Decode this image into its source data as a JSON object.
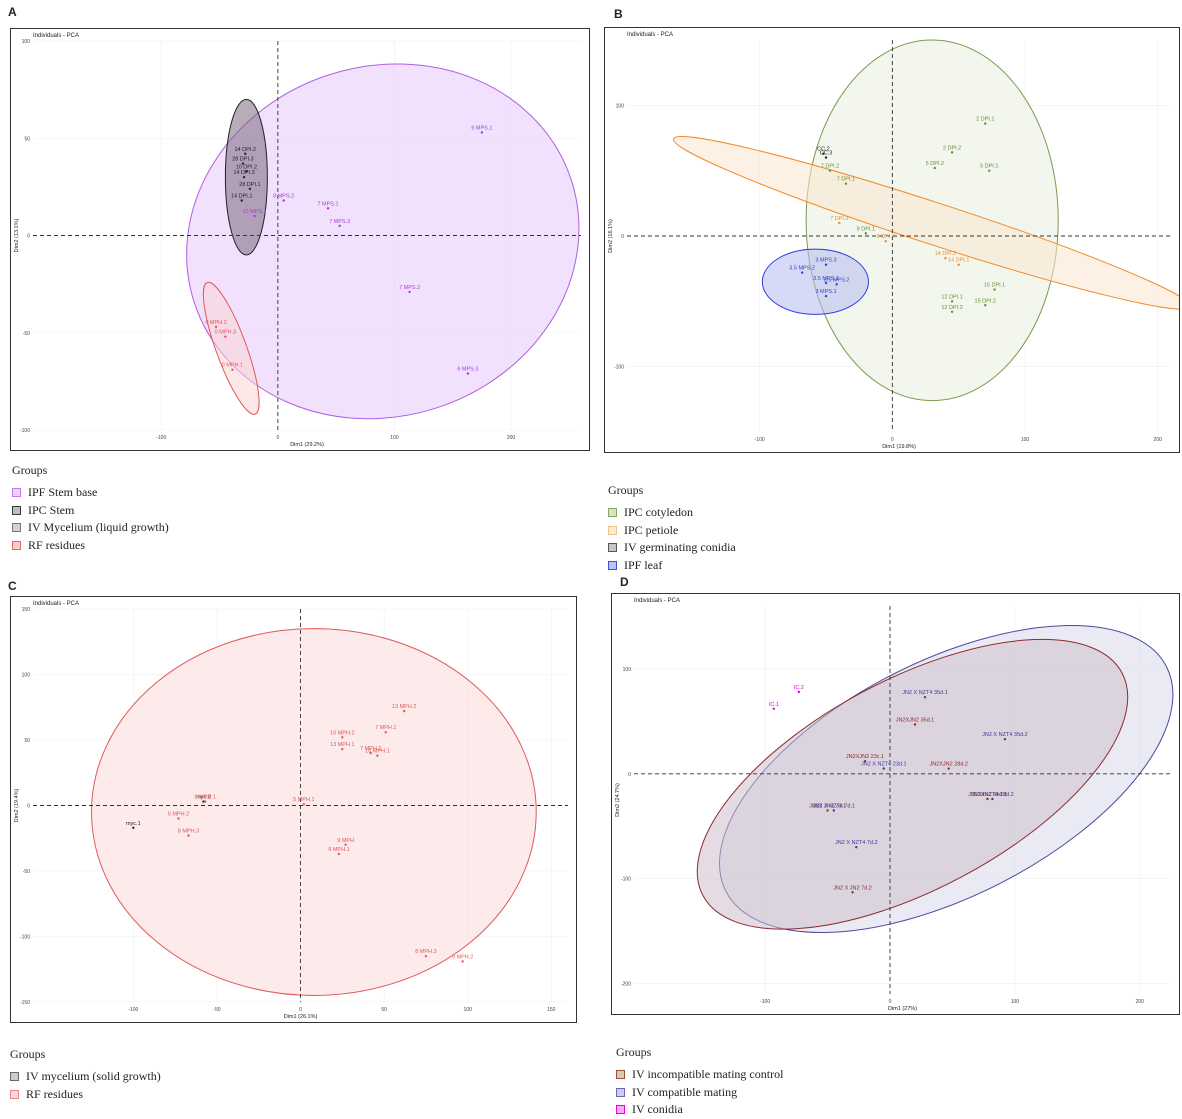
{
  "panels": [
    {
      "letter": "A",
      "plot_title": "Individuals - PCA",
      "legend_title": "Groups",
      "legend": [
        {
          "label": "IPF Stem base",
          "color": "#c27bf0"
        },
        {
          "label": "IPC Stem",
          "color": "#3a3a3a"
        },
        {
          "label": "IV Mycelium (liquid growth)",
          "color": "#777777"
        },
        {
          "label": "RF residues",
          "color": "#e26a6a"
        }
      ]
    },
    {
      "letter": "B",
      "plot_title": "Individuals - PCA",
      "legend_title": "Groups",
      "legend": [
        {
          "label": "IPC cotyledon",
          "color": "#8aa862"
        },
        {
          "label": "IPC petiole",
          "color": "#f3c28a"
        },
        {
          "label": "IV germinating conidia",
          "color": "#555555"
        },
        {
          "label": "IPF leaf",
          "color": "#3b4fd8"
        }
      ]
    },
    {
      "letter": "C",
      "plot_title": "Individuals - PCA",
      "legend_title": "Groups",
      "legend": [
        {
          "label": "IV mycelium (solid growth)",
          "color": "#666666"
        },
        {
          "label": "RF residues",
          "color": "#e88a8a"
        }
      ]
    },
    {
      "letter": "D",
      "plot_title": "Individuals - PCA",
      "legend_title": "Groups",
      "legend": [
        {
          "label": "IV incompatible mating control",
          "color": "#a0522d"
        },
        {
          "label": "IV compatible mating",
          "color": "#6a6ab0"
        },
        {
          "label": "IV conidia",
          "color": "#e600e6"
        }
      ]
    }
  ],
  "chart_data": [
    {
      "type": "scatter",
      "title": "Individuals - PCA",
      "xlabel": "Dim1 (29.2%)",
      "ylabel": "Dim2 (13.1%)",
      "xlim": [
        -210,
        260
      ],
      "ylim": [
        -100,
        100
      ],
      "xticks": [
        -100,
        0,
        100,
        200
      ],
      "yticks": [
        -100,
        -50,
        0,
        50,
        100
      ],
      "ellipses": [
        {
          "group": "IPF Stem base",
          "cx": 90,
          "cy": -3,
          "rx": 170,
          "ry": 90,
          "angle_deg": -18,
          "fill": "#e7c8fb",
          "stroke": "#b05ee0"
        },
        {
          "group": "IPC Stem",
          "cx": -27,
          "cy": 30,
          "rx": 18,
          "ry": 40,
          "angle_deg": 0,
          "fill": "#7c6a80",
          "stroke": "#222222"
        },
        {
          "group": "RF residues",
          "cx": -40,
          "cy": -58,
          "rx": 13,
          "ry": 36,
          "angle_deg": -20,
          "fill": "#fbd6d6",
          "stroke": "#e05858"
        }
      ],
      "groups": [
        {
          "name": "IPF Stem base",
          "color": "#a93bde",
          "points": [
            {
              "label": "6 MPS.1",
              "x": 175,
              "y": 53
            },
            {
              "label": "8 MPS.2",
              "x": 5,
              "y": 18
            },
            {
              "label": "7 MPS.1",
              "x": 43,
              "y": 14
            },
            {
              "label": "7 MPS.3",
              "x": 53,
              "y": 5
            },
            {
              "label": "10 MPS.1",
              "x": -20,
              "y": 10
            },
            {
              "label": "7 MPS.2",
              "x": 113,
              "y": -29
            },
            {
              "label": "6 MPS.3",
              "x": 163,
              "y": -71
            }
          ]
        },
        {
          "name": "IPC Stem",
          "color": "#222222",
          "points": [
            {
              "label": "14 DPI.2",
              "x": -28,
              "y": 42
            },
            {
              "label": "28 DPI.3",
              "x": -30,
              "y": 37
            },
            {
              "label": "10 DPI.2",
              "x": -27,
              "y": 33
            },
            {
              "label": "14 DPI.3",
              "x": -29,
              "y": 30
            },
            {
              "label": "28 DPI.1",
              "x": -24,
              "y": 24
            },
            {
              "label": "14 DPI.1",
              "x": -31,
              "y": 18
            }
          ]
        },
        {
          "name": "RF residues",
          "color": "#e05858",
          "points": [
            {
              "label": "0 MPH.2",
              "x": -53,
              "y": -47
            },
            {
              "label": "0 MPH.3",
              "x": -45,
              "y": -52
            },
            {
              "label": "0 MPH.1",
              "x": -39,
              "y": -69
            }
          ]
        }
      ]
    },
    {
      "type": "scatter",
      "title": "Individuals - PCA",
      "xlabel": "Dim1 (19.8%)",
      "ylabel": "Dim2 (16.1%)",
      "xlim": [
        -200,
        210
      ],
      "ylim": [
        -150,
        150
      ],
      "xticks": [
        -100,
        0,
        100,
        200
      ],
      "yticks": [
        -100,
        0,
        100
      ],
      "ellipses": [
        {
          "group": "IPC cotyledon",
          "cx": 30,
          "cy": 12,
          "rx": 95,
          "ry": 138,
          "angle_deg": 0,
          "fill": "#e7eedd",
          "stroke": "#7c9c51"
        },
        {
          "group": "IPC petiole",
          "cx": 30,
          "cy": 10,
          "rx": 205,
          "ry": 16,
          "angle_deg": 18,
          "fill": "#fbe6cf",
          "stroke": "#f08a2a"
        },
        {
          "group": "IPF leaf",
          "cx": -58,
          "cy": -35,
          "rx": 40,
          "ry": 25,
          "angle_deg": 0,
          "fill": "#b4bcf0",
          "stroke": "#2f3fd8"
        }
      ],
      "groups": [
        {
          "name": "IPC cotyledon",
          "color": "#6b8c39",
          "points": [
            {
              "label": "2 DPI.1",
              "x": 70,
              "y": 86
            },
            {
              "label": "2 DPI.2",
              "x": 45,
              "y": 64
            },
            {
              "label": "5 DPI.2",
              "x": 32,
              "y": 52
            },
            {
              "label": "5 DPI.1",
              "x": 73,
              "y": 50
            },
            {
              "label": "7 DPI.2",
              "x": -47,
              "y": 50
            },
            {
              "label": "7 DPI.1",
              "x": -35,
              "y": 40
            },
            {
              "label": "9 DPI.1",
              "x": -20,
              "y": 2
            },
            {
              "label": "15 DPI.1",
              "x": 77,
              "y": -41
            },
            {
              "label": "15 DPI.2",
              "x": 70,
              "y": -53
            },
            {
              "label": "12 DPI.1",
              "x": 45,
              "y": -50
            },
            {
              "label": "12 DPI.2",
              "x": 45,
              "y": -58
            }
          ]
        },
        {
          "name": "IPC petiole",
          "color": "#f08a2a",
          "points": [
            {
              "label": "7 DPI.3",
              "x": -40,
              "y": 10
            },
            {
              "label": "9 DPI.2",
              "x": -5,
              "y": -4
            },
            {
              "label": "14 DPI.2",
              "x": 40,
              "y": -17
            },
            {
              "label": "14 DPI.1",
              "x": 50,
              "y": -22
            }
          ]
        },
        {
          "name": "IV germinating conidia",
          "color": "#222222",
          "points": [
            {
              "label": "CC.2",
              "x": -52,
              "y": 63
            },
            {
              "label": "CC.3",
              "x": -50,
              "y": 60
            }
          ]
        },
        {
          "name": "IPF leaf",
          "color": "#2f3fd8",
          "points": [
            {
              "label": "3 MPS.3",
              "x": -50,
              "y": -22
            },
            {
              "label": "3.5 MPS.2",
              "x": -68,
              "y": -28
            },
            {
              "label": "3.5 MPS.1",
              "x": -50,
              "y": -36
            },
            {
              "label": "3.5 MPS.2",
              "x": -42,
              "y": -37
            },
            {
              "label": "3 MPS.1",
              "x": -50,
              "y": -46
            }
          ]
        }
      ]
    },
    {
      "type": "scatter",
      "title": "Individuals - PCA",
      "xlabel": "Dim1 (26.1%)",
      "ylabel": "Dim2 (19.4%)",
      "xlim": [
        -160,
        160
      ],
      "ylim": [
        -150,
        150
      ],
      "xticks": [
        -100,
        -50,
        0,
        50,
        100,
        150
      ],
      "yticks": [
        -150,
        -100,
        -50,
        0,
        50,
        100,
        150
      ],
      "ellipses": [
        {
          "group": "RF residues",
          "cx": 8,
          "cy": -5,
          "rx": 133,
          "ry": 140,
          "angle_deg": 0,
          "fill": "#fbdada",
          "stroke": "#e05858"
        }
      ],
      "groups": [
        {
          "name": "IV mycelium (solid growth)",
          "color": "#222222",
          "points": [
            {
              "label": "myc.1",
              "x": -100,
              "y": -17
            },
            {
              "label": "myc.2",
              "x": -58,
              "y": 3
            }
          ]
        },
        {
          "name": "RF residues",
          "color": "#e05858",
          "points": [
            {
              "label": "13 MPH.2",
              "x": 62,
              "y": 72
            },
            {
              "label": "7 MPH.1",
              "x": 51,
              "y": 56
            },
            {
              "label": "10 MPH.2",
              "x": 25,
              "y": 52
            },
            {
              "label": "13 MPH.1",
              "x": 25,
              "y": 43
            },
            {
              "label": "7 MPH.2",
              "x": 42,
              "y": 40
            },
            {
              "label": "10 MPH.1",
              "x": 46,
              "y": 38
            },
            {
              "label": "5 MPH.1",
              "x": 2,
              "y": 1
            },
            {
              "label": "0 MPH.1",
              "x": -57,
              "y": 3
            },
            {
              "label": "5 MPH.2",
              "x": -73,
              "y": -10
            },
            {
              "label": "8 MPH.3",
              "x": -67,
              "y": -23
            },
            {
              "label": "9 MPH",
              "x": 27,
              "y": -30
            },
            {
              "label": "9 MPH.1",
              "x": 23,
              "y": -37
            },
            {
              "label": "8 MPH.3",
              "x": 75,
              "y": -115
            },
            {
              "label": "9 MPH.2",
              "x": 97,
              "y": -119
            }
          ]
        }
      ]
    },
    {
      "type": "scatter",
      "title": "Individuals - PCA",
      "xlabel": "Dim1 (27%)",
      "ylabel": "Dim2 (24.7%)",
      "xlim": [
        -205,
        225
      ],
      "ylim": [
        -210,
        160
      ],
      "xticks": [
        -100,
        0,
        100,
        200
      ],
      "yticks": [
        -200,
        -100,
        0,
        100
      ],
      "ellipses": [
        {
          "group": "IV compatible mating",
          "cx": 45,
          "cy": -5,
          "rx": 198,
          "ry": 112,
          "angle_deg": -27,
          "fill": "#d9d8eb",
          "stroke": "#4a4a9c"
        },
        {
          "group": "IV incompatible mating control",
          "cx": 18,
          "cy": -10,
          "rx": 190,
          "ry": 100,
          "angle_deg": -28,
          "fill": "#cdbfca",
          "stroke": "#8b2c2c"
        }
      ],
      "groups": [
        {
          "name": "IV incompatible mating control",
          "color": "#8b2c2c",
          "points": [
            {
              "label": "JN2XJN2 35d.1",
              "x": 20,
              "y": 47
            },
            {
              "label": "JN2XJN2 23c.1",
              "x": -20,
              "y": 12
            },
            {
              "label": "JN2XJN2 28d.2",
              "x": 47,
              "y": 5
            },
            {
              "label": "JN2X JN2 7d.1",
              "x": -50,
              "y": -35
            },
            {
              "label": "JN2 X JN2 7d.2",
              "x": -30,
              "y": -113
            },
            {
              "label": "JN2XJN2 35d.2",
              "x": 78,
              "y": -24
            }
          ]
        },
        {
          "name": "IV compatible mating",
          "color": "#3b3b9a",
          "points": [
            {
              "label": "JN2 X NZT4 35d.1",
              "x": 28,
              "y": 73
            },
            {
              "label": "JN2 X NZT4 35d.2",
              "x": 92,
              "y": 33
            },
            {
              "label": "JN2 X NZT4 23d.1",
              "x": -5,
              "y": 5
            },
            {
              "label": "JN2 X NZT4 7d.1",
              "x": -45,
              "y": -35
            },
            {
              "label": "JN2 X NZT4 7d.2",
              "x": -27,
              "y": -70
            },
            {
              "label": "JN2XNZT4 28d.2",
              "x": 82,
              "y": -24
            }
          ]
        },
        {
          "name": "IV conidia",
          "color": "#e600e6",
          "points": [
            {
              "label": "IC.1",
              "x": -93,
              "y": 62
            },
            {
              "label": "IC.2",
              "x": -73,
              "y": 78
            }
          ]
        }
      ]
    }
  ]
}
